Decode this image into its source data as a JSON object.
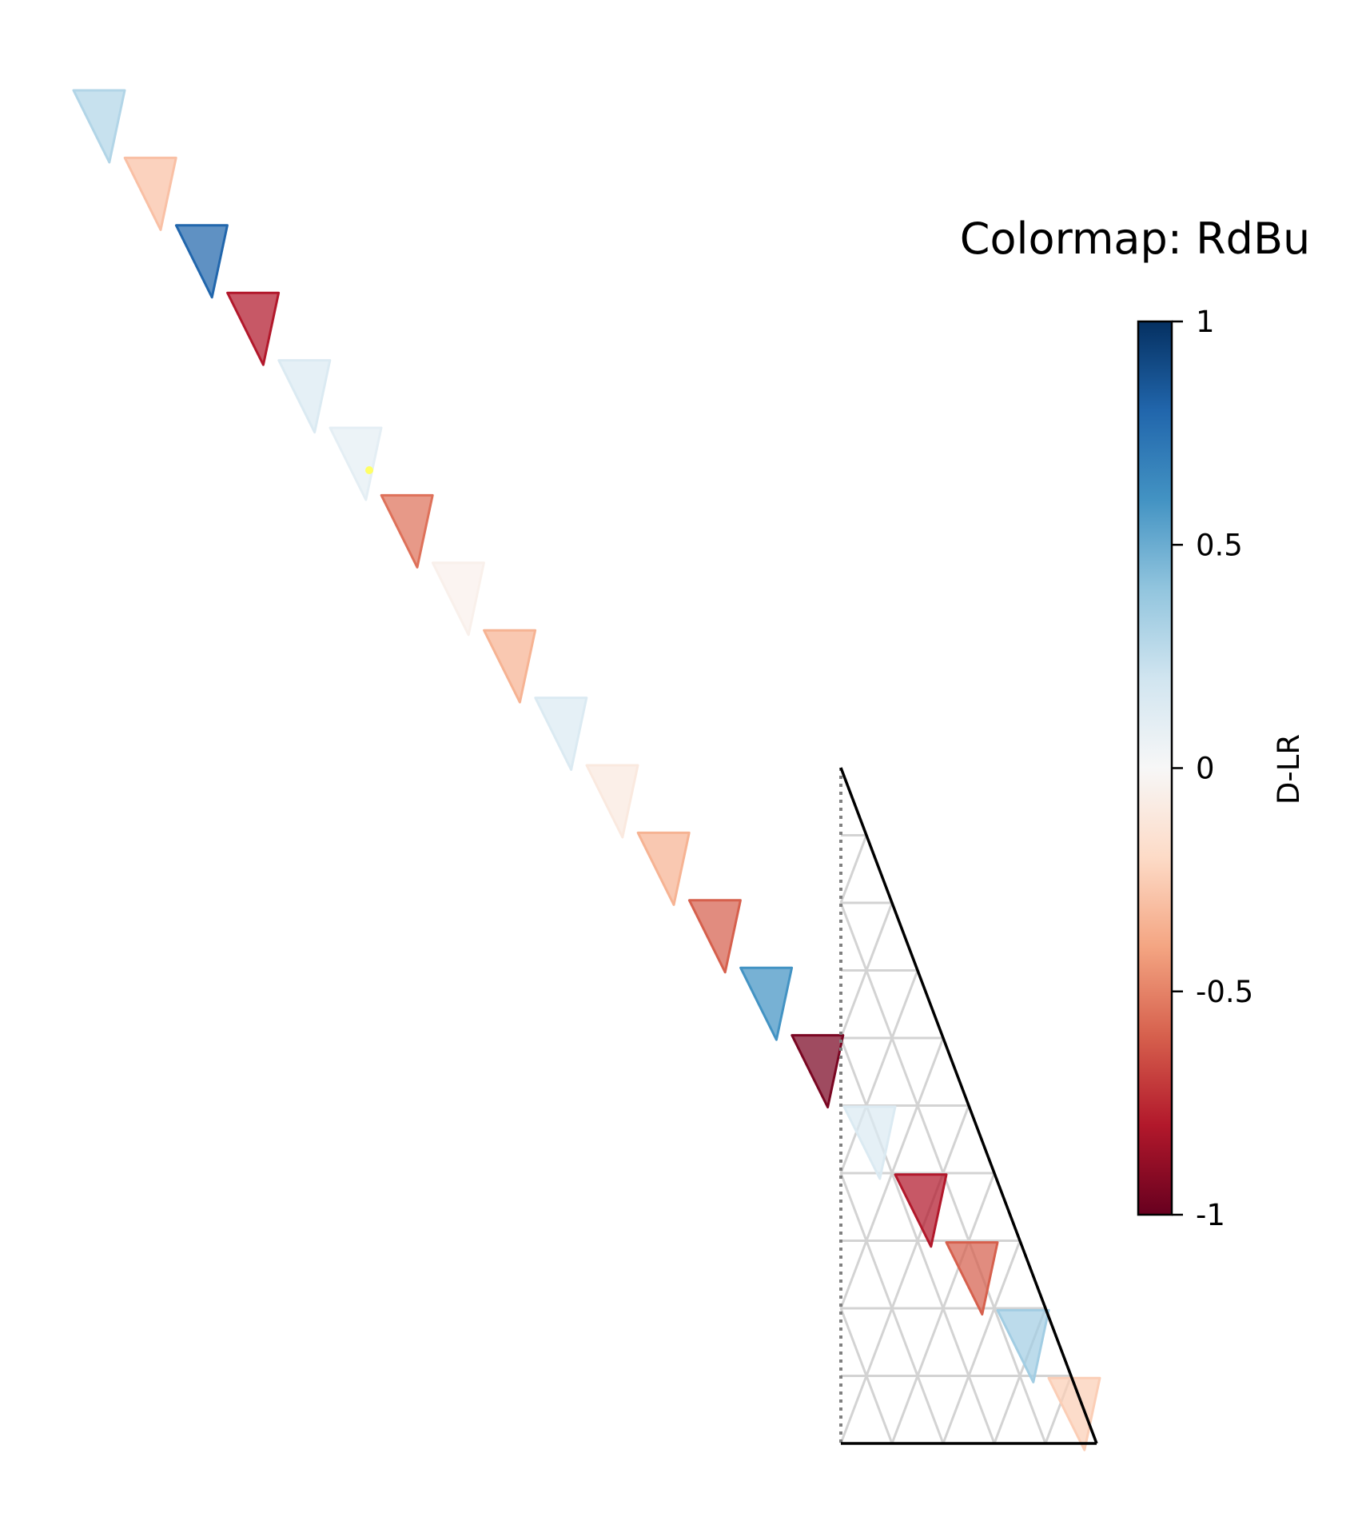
{
  "chart_data": {
    "type": "heatmap",
    "layout": "triangle-grid",
    "title": "Colormap: RdBu",
    "colormap": "RdBu",
    "colorbar": {
      "label": "D-LR",
      "vmin": -1,
      "vmax": 1,
      "ticks": [
        1,
        0.5,
        0,
        -0.5,
        -1
      ],
      "tick_labels": [
        "1",
        "0.5",
        "0",
        "-0.5",
        "-1"
      ]
    },
    "diagonal_values": [
      0.3,
      -0.3,
      0.8,
      -0.8,
      0.15,
      0.1,
      -0.55,
      -0.05,
      -0.35,
      0.15,
      -0.1,
      -0.35,
      -0.6,
      0.6,
      -0.95
    ],
    "grid_values": [
      0.15,
      -0.8,
      -0.6,
      0.35,
      -0.25
    ]
  }
}
